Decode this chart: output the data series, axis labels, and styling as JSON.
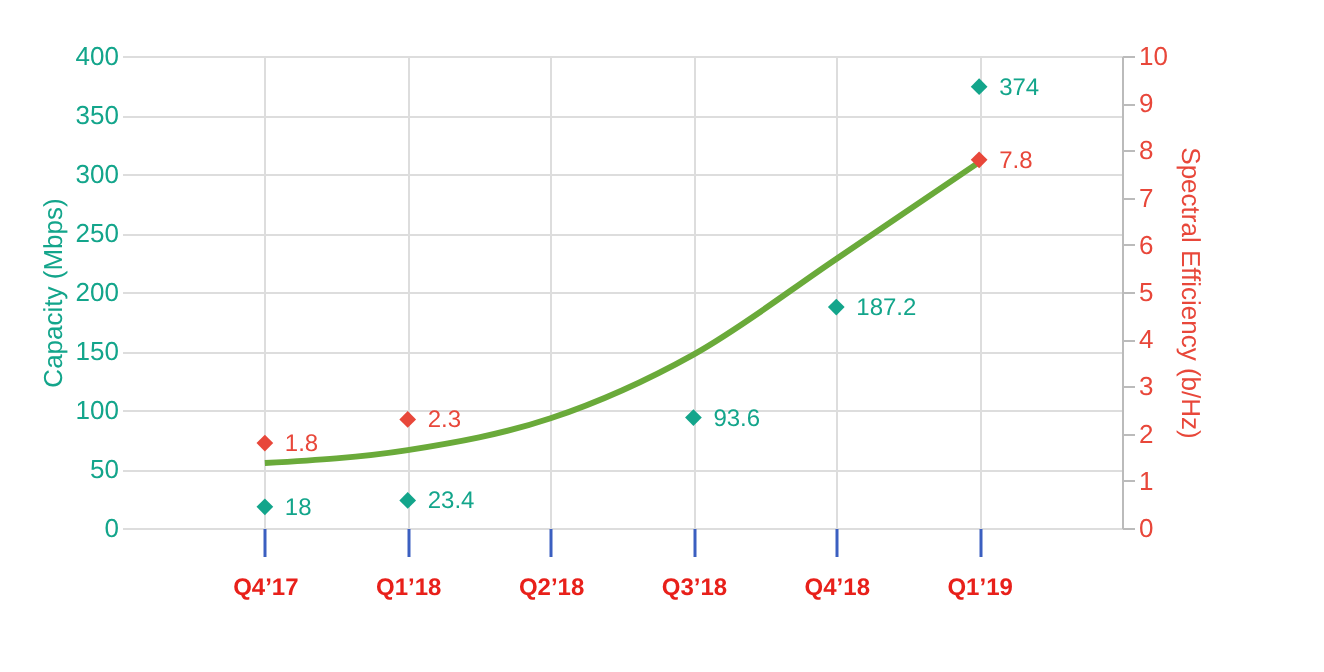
{
  "chart_data": {
    "type": "scatter",
    "ylabel": "Capacity (Mbps)",
    "y2label": "Spectral Efficiency (b/Hz)",
    "categories": [
      "Q4’17",
      "Q1’18",
      "Q2’18",
      "Q3’18",
      "Q4’18",
      "Q1’19"
    ],
    "ylim": [
      0,
      400
    ],
    "yticks": [
      0,
      50,
      100,
      150,
      200,
      250,
      300,
      350,
      400
    ],
    "y2lim": [
      0,
      10
    ],
    "y2ticks": [
      0,
      1,
      2,
      3,
      4,
      5,
      6,
      7,
      8,
      9,
      10
    ],
    "series": [
      {
        "color": "#13a58b",
        "values": [
          18,
          23.4,
          null,
          93.6,
          187.2,
          374
        ],
        "value_labels": [
          "18",
          "23.4",
          null,
          "93.6",
          "187.2",
          "374"
        ]
      },
      {
        "axis": "y2",
        "color": "#e8473a",
        "values": [
          1.8,
          2.3,
          null,
          null,
          null,
          7.8
        ],
        "value_labels": [
          "1.8",
          "2.3",
          null,
          null,
          null,
          "7.8"
        ]
      },
      {
        "type": "line",
        "marker": "none",
        "color": "#6aaa3a",
        "values": [
          55,
          66,
          93,
          147,
          228,
          310
        ]
      }
    ],
    "marker": "diamond",
    "line_style": "solid",
    "grid": true
  }
}
